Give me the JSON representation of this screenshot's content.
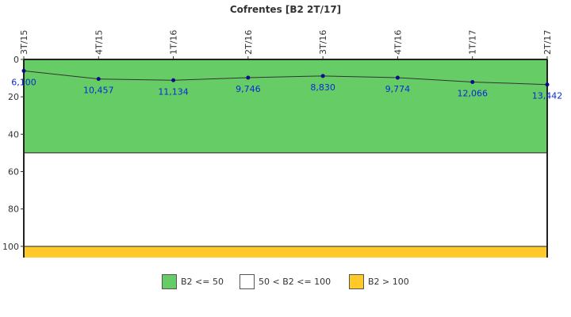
{
  "chart_data": {
    "type": "line",
    "title": "Cofrentes [B2 2T/17]",
    "categories": [
      "3T/15",
      "4T/15",
      "1T/16",
      "2T/16",
      "3T/16",
      "4T/16",
      "1T/17",
      "2T/17"
    ],
    "series": [
      {
        "values": [
          6.1,
          10.457,
          11.134,
          9.746,
          8.83,
          9.774,
          12.066,
          13.442
        ],
        "labels": [
          "6,100",
          "10,457",
          "11,134",
          "9,746",
          "8,830",
          "9,774",
          "12,066",
          "13,442"
        ],
        "color": "#0a0a8c"
      }
    ],
    "ylim": [
      0,
      106
    ],
    "y_inverted": true,
    "yticks": [
      "0",
      "20",
      "40",
      "60",
      "80",
      "100"
    ],
    "ytick_values": [
      0,
      20,
      40,
      60,
      80,
      100
    ],
    "bands": [
      {
        "from": 0,
        "to": 50,
        "color": "#66cc66",
        "legend": "B2 <= 50"
      },
      {
        "from": 50,
        "to": 100,
        "color": "#ffffff",
        "legend": "50 < B2 <= 100"
      },
      {
        "from": 100,
        "to": 106,
        "color": "#ffc929",
        "legend": "B2 > 100"
      }
    ],
    "legend_position": "bottom"
  }
}
